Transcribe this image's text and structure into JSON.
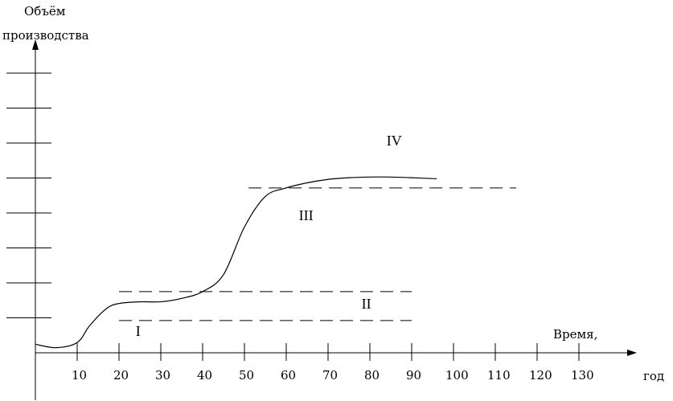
{
  "chart_data": {
    "type": "line",
    "ylabel_lines": [
      "Объём",
      "производства"
    ],
    "xlabel_lines": [
      "Время,",
      "год"
    ],
    "x_ticks": [
      10,
      20,
      30,
      40,
      50,
      60,
      70,
      80,
      90,
      100,
      110,
      120,
      130
    ],
    "y_tick_count": 8,
    "xlim": [
      0,
      145
    ],
    "ylim": [
      0,
      9
    ],
    "series": [
      {
        "x": [
          0,
          5,
          10,
          13,
          17,
          20,
          25,
          30,
          35,
          40,
          45,
          50,
          55,
          60,
          65,
          70,
          75,
          80,
          85,
          90,
          96
        ],
        "y": [
          0.25,
          0.15,
          0.3,
          0.8,
          1.3,
          1.45,
          1.5,
          1.5,
          1.6,
          1.8,
          2.3,
          3.7,
          4.6,
          4.85,
          5.0,
          5.1,
          5.15,
          5.17,
          5.17,
          5.15,
          5.12
        ]
      }
    ],
    "boundaries": [
      {
        "y": 0.95,
        "x_start": 20,
        "x_end": 90
      },
      {
        "y": 1.8,
        "x_start": 20,
        "x_end": 90
      },
      {
        "y": 4.85,
        "x_start": 51,
        "x_end": 115
      }
    ],
    "stage_labels": [
      {
        "text": "I",
        "x": 24,
        "y": 0.5
      },
      {
        "text": "II",
        "x": 78,
        "y": 1.3
      },
      {
        "text": "III",
        "x": 63,
        "y": 3.9
      },
      {
        "text": "IV",
        "x": 84,
        "y": 6.1
      }
    ]
  }
}
